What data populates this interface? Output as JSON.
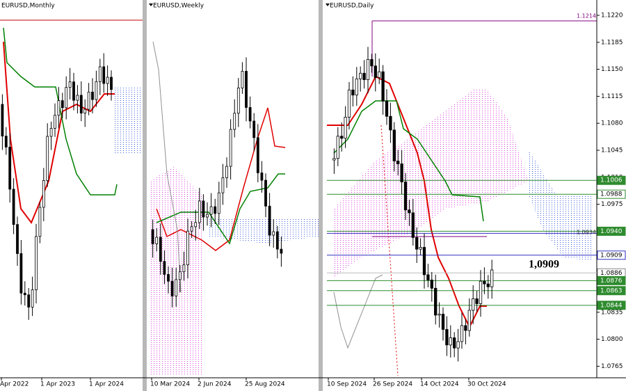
{
  "panels": [
    {
      "title": "EURUSD,Monthly",
      "x_labels": [
        "Apr 2022",
        "1 Apr 2023",
        "1 Apr 2024"
      ]
    },
    {
      "title": "EURUSD,Weekly",
      "x_labels": [
        "10 Mar 2024",
        "2 Jun 2024",
        "25 Aug 2024"
      ]
    },
    {
      "title": "EURUSD,Daily",
      "x_labels": [
        "10 Sep 2024",
        "26 Sep 2024",
        "14 Oct 2024",
        "30 Oct 2024"
      ]
    }
  ],
  "price_axis": [
    "1.1220",
    "1.1185",
    "1.1150",
    "1.1115",
    "1.1080",
    "1.1045",
    "1.1010",
    "1.0975",
    "1.0835",
    "1.0800",
    "1.0765"
  ],
  "level_labels": [
    {
      "text": "1.1006",
      "style": "green"
    },
    {
      "text": "1.0988",
      "style": "outline"
    },
    {
      "text": "1.0940",
      "style": "green"
    },
    {
      "text": "1.0909",
      "style": "blue"
    },
    {
      "text": "1.0886",
      "style": "white"
    },
    {
      "text": "1.0876",
      "style": "green"
    },
    {
      "text": "1.0863",
      "style": "green"
    },
    {
      "text": "1.0844",
      "style": "green"
    }
  ],
  "line_labels": [
    "1.1214",
    "1.0934"
  ],
  "annotation": "1,0909"
}
